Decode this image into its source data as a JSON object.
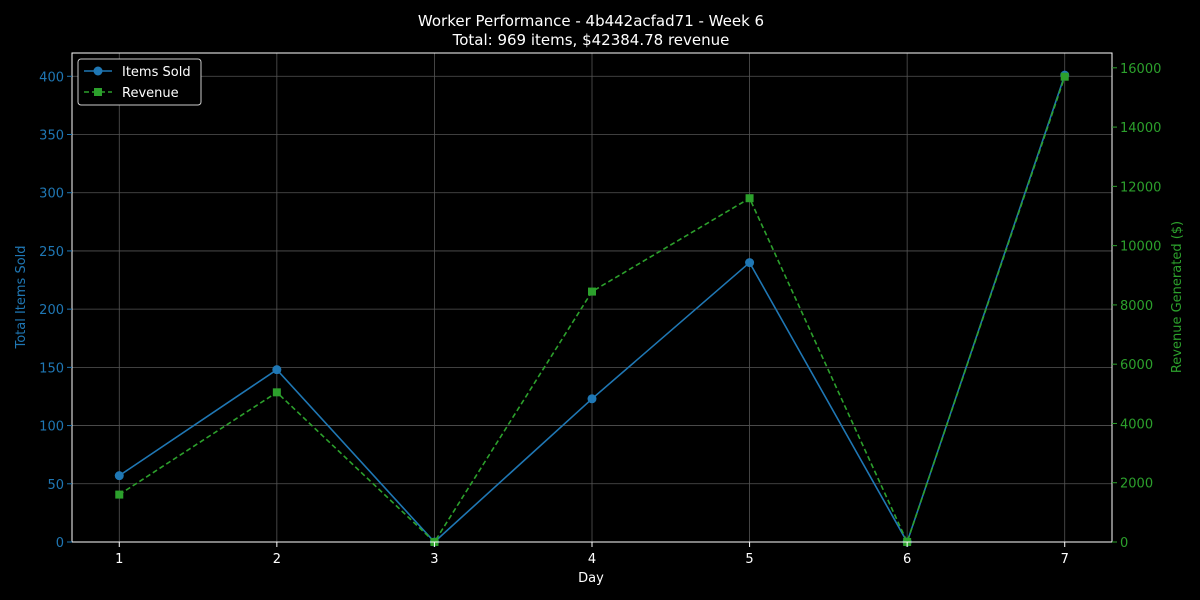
{
  "chart_data": {
    "type": "line",
    "title": "Worker Performance - 4b442acfad71 - Week 6",
    "subtitle": "Total: 969 items, $42384.78 revenue",
    "xlabel": "Day",
    "ylabel_left": "Total Items Sold",
    "ylabel_right": "Revenue Generated ($)",
    "x": [
      1,
      2,
      3,
      4,
      5,
      6,
      7
    ],
    "x_ticks": [
      "1",
      "2",
      "3",
      "4",
      "5",
      "6",
      "7"
    ],
    "xlim": [
      0.7,
      7.3
    ],
    "ylim_left": [
      0,
      420
    ],
    "ylim_right": [
      0,
      16500
    ],
    "yticks_left": [
      0,
      50,
      100,
      150,
      200,
      250,
      300,
      350,
      400
    ],
    "yticks_right": [
      0,
      2000,
      4000,
      6000,
      8000,
      10000,
      12000,
      14000,
      16000
    ],
    "grid": true,
    "legend_position": "top-left",
    "series": [
      {
        "name": "Items Sold",
        "axis": "left",
        "color": "#1f77b4",
        "marker": "circle",
        "line_style": "solid",
        "values": [
          57,
          148,
          0,
          123,
          240,
          0,
          401
        ]
      },
      {
        "name": "Revenue",
        "axis": "right",
        "color": "#2ca02c",
        "marker": "square",
        "line_style": "dashed",
        "values": [
          1600,
          5050,
          0,
          8450,
          11600,
          0,
          15700
        ]
      }
    ],
    "colors": {
      "background": "#000000",
      "axes": "#ffffff",
      "grid": "#555555",
      "left_axis": "#1f77b4",
      "right_axis": "#2ca02c"
    }
  }
}
